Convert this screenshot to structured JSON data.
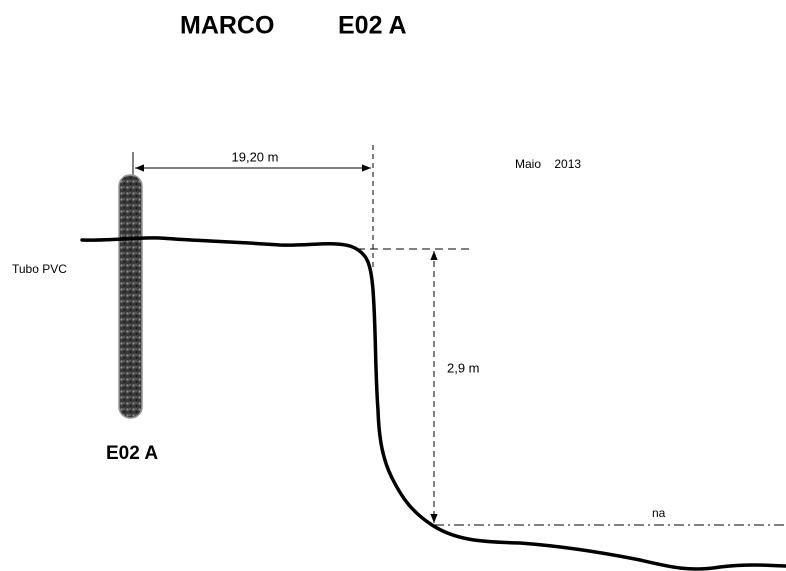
{
  "title": [
    "MARCO",
    "E02 A"
  ],
  "labels": {
    "horizontal_distance": "19,20 m",
    "date": "Maio    2013",
    "pipe": "Tubo PVC",
    "depth": "2,9 m",
    "marker": "E02 A",
    "water_level": "na"
  }
}
